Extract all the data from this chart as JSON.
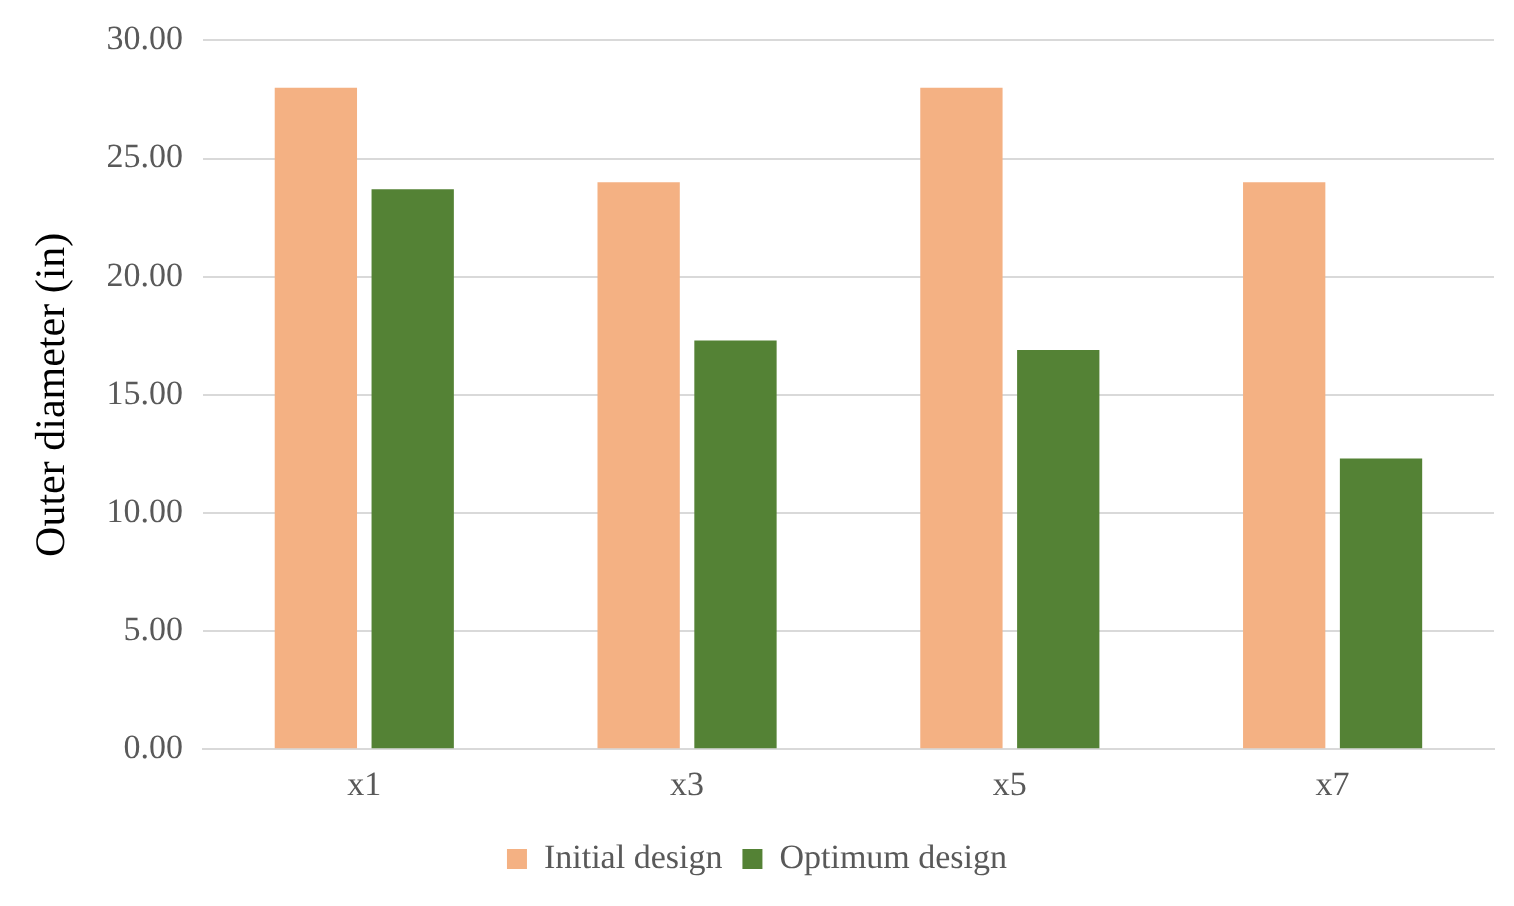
{
  "chart_data": {
    "type": "bar",
    "ylabel": "Outer diameter (in)",
    "categories": [
      "x1",
      "x3",
      "x5",
      "x7"
    ],
    "series": [
      {
        "name": "Initial design",
        "color": "#f4b183",
        "values": [
          28.0,
          24.0,
          28.0,
          24.0
        ]
      },
      {
        "name": "Optimum design",
        "color": "#548235",
        "values": [
          23.7,
          17.3,
          16.9,
          12.3
        ]
      }
    ],
    "ylim": [
      0,
      30
    ],
    "yticks": [
      {
        "value": 0,
        "label": "0.00"
      },
      {
        "value": 5,
        "label": "5.00"
      },
      {
        "value": 10,
        "label": "10.00"
      },
      {
        "value": 15,
        "label": "15.00"
      },
      {
        "value": 20,
        "label": "20.00"
      },
      {
        "value": 25,
        "label": "25.00"
      },
      {
        "value": 30,
        "label": "30.00"
      }
    ],
    "grid": "y",
    "legend": "bottom"
  }
}
